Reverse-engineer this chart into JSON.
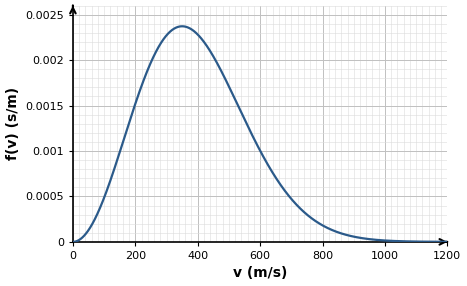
{
  "title": "",
  "xlabel": "v (m/s)",
  "ylabel": "f(v) (s/m)",
  "xlim": [
    0,
    1200
  ],
  "ylim": [
    0,
    0.0026
  ],
  "xmajor_interval": 200,
  "xminor_interval": 20,
  "ymajor_interval": 0.0005,
  "yminor_interval": 0.0001,
  "curve_color": "#2b5a8a",
  "curve_linewidth": 1.6,
  "grid_major_color": "#c0c0c0",
  "grid_minor_color": "#dcdcdc",
  "background_color": "#ffffff",
  "mb_a": 350,
  "figsize": [
    4.67,
    2.86
  ],
  "dpi": 100,
  "ytick_labels": [
    "0",
    "0.0005",
    "0.001",
    "0.0015",
    "0.002",
    "0.0025"
  ],
  "ytick_values": [
    0,
    0.0005,
    0.001,
    0.0015,
    0.002,
    0.0025
  ],
  "xtick_values": [
    0,
    200,
    400,
    600,
    800,
    1000,
    1200
  ],
  "xlabel_fontsize": 10,
  "ylabel_fontsize": 10,
  "tick_fontsize": 8
}
